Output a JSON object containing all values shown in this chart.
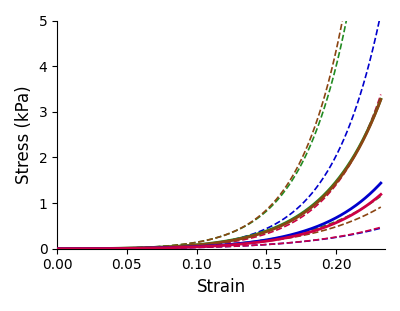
{
  "title": "",
  "xlabel": "Strain",
  "ylabel": "Stress (kPa)",
  "xlim": [
    0,
    0.235
  ],
  "ylim": [
    0,
    5
  ],
  "yticks": [
    0,
    1,
    2,
    3,
    4,
    5
  ],
  "xticks": [
    0,
    0.05,
    0.1,
    0.15,
    0.2
  ],
  "curve_groups": [
    {
      "color": "#228B22",
      "lw_solid": 2.0,
      "lw_dash": 1.2,
      "mean": {
        "a": 0.45,
        "b": 18.0,
        "n": 1.5
      },
      "upper": {
        "a": 0.45,
        "b": 23.0,
        "n": 1.5
      },
      "lower": {
        "a": 0.45,
        "b": 13.5,
        "n": 1.5
      }
    },
    {
      "color": "#8B4513",
      "lw_solid": 2.0,
      "lw_dash": 1.2,
      "mean": {
        "a": 0.4,
        "b": 18.5,
        "n": 1.5
      },
      "upper": {
        "a": 0.4,
        "b": 24.0,
        "n": 1.5
      },
      "lower": {
        "a": 0.4,
        "b": 13.0,
        "n": 1.5
      }
    },
    {
      "color": "#0000CD",
      "lw_solid": 2.0,
      "lw_dash": 1.2,
      "mean": {
        "a": 0.28,
        "b": 16.5,
        "n": 1.5
      },
      "upper": {
        "a": 0.28,
        "b": 22.0,
        "n": 1.5
      },
      "lower": {
        "a": 0.28,
        "b": 11.5,
        "n": 1.5
      }
    },
    {
      "color": "#CC0044",
      "lw_solid": 2.0,
      "lw_dash": 1.2,
      "mean": {
        "a": 0.26,
        "b": 16.0,
        "n": 1.5
      },
      "upper": {
        "a": 0.26,
        "b": 20.5,
        "n": 1.5
      },
      "lower": {
        "a": 0.26,
        "b": 12.0,
        "n": 1.5
      }
    }
  ],
  "figsize": [
    4.0,
    3.11
  ],
  "dpi": 100
}
